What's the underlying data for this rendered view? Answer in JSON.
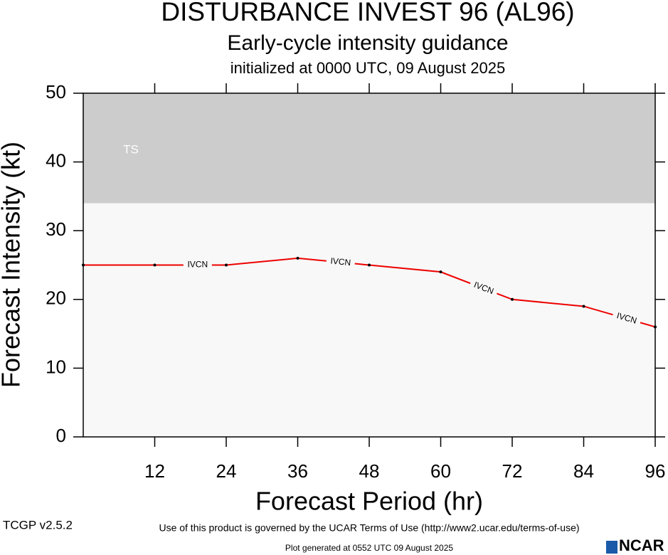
{
  "chart_data": {
    "type": "line",
    "title": "DISTURBANCE INVEST 96 (AL96)",
    "subtitle": "Early-cycle intensity guidance",
    "subtitle2": "initialized at 0000 UTC, 09 August 2025",
    "x_label": "Forecast Period (hr)",
    "y_label": "Forecast Intensity (kt)",
    "x": [
      0,
      12,
      24,
      36,
      48,
      60,
      72,
      84,
      96
    ],
    "series": [
      {
        "name": "IVCN",
        "color": "#ee0000",
        "values": [
          25,
          25,
          25,
          26,
          25,
          24,
          20,
          19,
          16
        ]
      }
    ],
    "xlim": [
      0,
      96
    ],
    "xticks": [
      12,
      24,
      36,
      48,
      60,
      72,
      84,
      96
    ],
    "ylim": [
      0,
      50
    ],
    "yticks": [
      0,
      10,
      20,
      30,
      40,
      50
    ],
    "bands": [
      {
        "label": "TS",
        "from": 34,
        "to": 50,
        "color": "#cccccc"
      }
    ],
    "background": "#f8f8f8",
    "footer": "Use of this product is governed by the UCAR Terms of Use (http://www2.ucar.edu/terms-of-use)",
    "version": "TCGP v2.5.2",
    "generated": "Plot generated at 0552 UTC  09 August 2025",
    "logo": "NCAR"
  }
}
